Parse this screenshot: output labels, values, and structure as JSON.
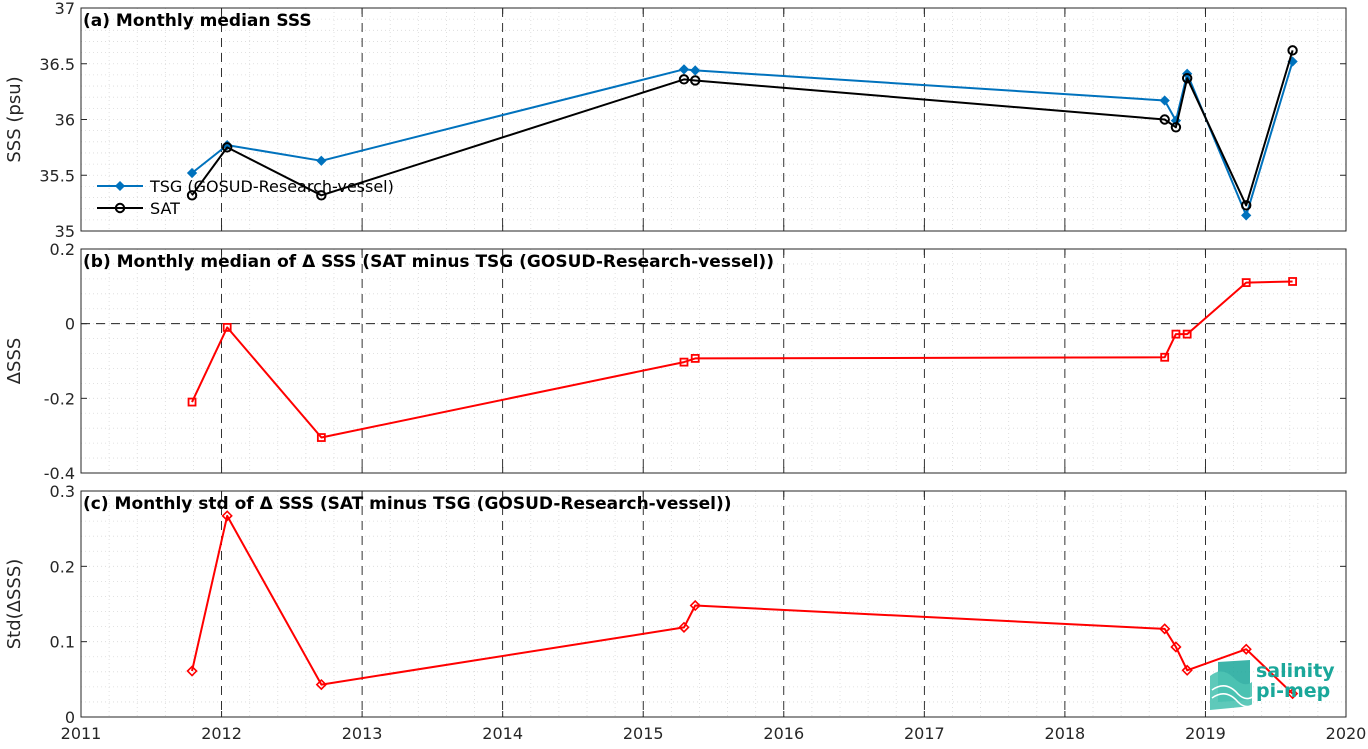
{
  "chart_data": [
    {
      "type": "line",
      "panel": "a",
      "title": "(a) Monthly median SSS",
      "ylabel": "SSS (psu)",
      "xlim": [
        2011,
        2020
      ],
      "ylim": [
        35,
        37
      ],
      "yticks": [
        35,
        35.5,
        36,
        36.5,
        37
      ],
      "ytick_labels": [
        "35",
        "35.5",
        "36",
        "36.5",
        "37"
      ],
      "grid": true,
      "legend_position": "left",
      "series": [
        {
          "name": "TSG (GOSUD-Research-vessel)",
          "color": "#0072BD",
          "marker": "diamond",
          "x": [
            2011.79,
            2012.04,
            2012.71,
            2015.29,
            2015.37,
            2018.71,
            2018.79,
            2018.87,
            2019.29,
            2019.62
          ],
          "y": [
            35.52,
            35.77,
            35.63,
            36.45,
            36.44,
            36.17,
            35.99,
            36.41,
            35.14,
            36.52
          ]
        },
        {
          "name": "SAT",
          "color": "#000000",
          "marker": "circle",
          "x": [
            2011.79,
            2012.04,
            2012.71,
            2015.29,
            2015.37,
            2018.71,
            2018.79,
            2018.87,
            2019.29,
            2019.62
          ],
          "y": [
            35.32,
            35.75,
            35.32,
            36.36,
            36.35,
            36.0,
            35.93,
            36.37,
            35.23,
            36.62
          ]
        }
      ]
    },
    {
      "type": "line",
      "panel": "b",
      "title": "(b) Monthly median of Δ SSS (SAT minus TSG (GOSUD-Research-vessel))",
      "ylabel": "ΔSSS",
      "xlim": [
        2011,
        2020
      ],
      "ylim": [
        -0.4,
        0.2
      ],
      "yticks": [
        -0.4,
        -0.2,
        0,
        0.2
      ],
      "ytick_labels": [
        "-0.4",
        "-0.2",
        "0",
        "0.2"
      ],
      "grid": true,
      "zero_line": true,
      "series": [
        {
          "color": "#FF0000",
          "marker": "square",
          "x": [
            2011.79,
            2012.04,
            2012.71,
            2015.29,
            2015.37,
            2018.71,
            2018.79,
            2018.87,
            2019.29,
            2019.62
          ],
          "y": [
            -0.21,
            -0.01,
            -0.305,
            -0.103,
            -0.093,
            -0.09,
            -0.028,
            -0.028,
            0.11,
            0.113
          ]
        }
      ]
    },
    {
      "type": "line",
      "panel": "c",
      "title": "(c) Monthly std of Δ SSS (SAT minus TSG (GOSUD-Research-vessel))",
      "ylabel": "Std(ΔSSS)",
      "xlim": [
        2011,
        2020
      ],
      "ylim": [
        0,
        0.3
      ],
      "yticks": [
        0,
        0.1,
        0.2,
        0.3
      ],
      "ytick_labels": [
        "0",
        "0.1",
        "0.2",
        "0.3"
      ],
      "xticks": [
        2011,
        2012,
        2013,
        2014,
        2015,
        2016,
        2017,
        2018,
        2019,
        2020
      ],
      "xtick_labels": [
        "2011",
        "2012",
        "2013",
        "2014",
        "2015",
        "2016",
        "2017",
        "2018",
        "2019",
        "2020"
      ],
      "grid": true,
      "series": [
        {
          "color": "#FF0000",
          "marker": "diamond",
          "x": [
            2011.79,
            2012.04,
            2012.71,
            2015.29,
            2015.37,
            2018.71,
            2018.79,
            2018.87,
            2019.29,
            2019.62
          ],
          "y": [
            0.061,
            0.267,
            0.043,
            0.119,
            0.148,
            0.117,
            0.093,
            0.062,
            0.09,
            0.031
          ]
        }
      ]
    }
  ],
  "logo": {
    "line1": "salinity",
    "line2": "pi-mep",
    "color": "#1aa79a"
  }
}
